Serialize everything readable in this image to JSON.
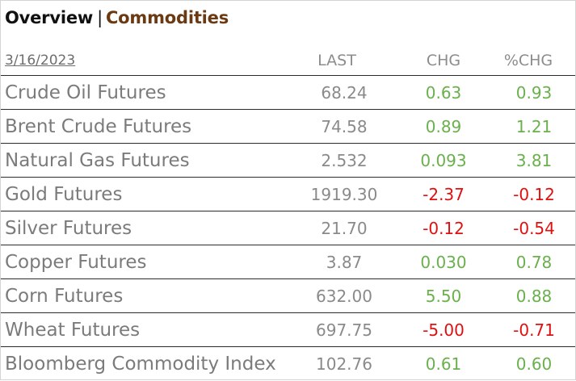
{
  "header": {
    "overview_label": "Overview",
    "separator": "|",
    "commodities_label": "Commodities"
  },
  "table": {
    "date": "3/16/2023",
    "columns": {
      "last": "LAST",
      "chg": "CHG",
      "pct": "%CHG"
    },
    "rows": [
      {
        "name": "Crude Oil Futures",
        "last": "68.24",
        "chg": "0.63",
        "pct": "0.93",
        "direction": "up"
      },
      {
        "name": "Brent Crude Futures",
        "last": "74.58",
        "chg": "0.89",
        "pct": "1.21",
        "direction": "up"
      },
      {
        "name": "Natural Gas Futures",
        "last": "2.532",
        "chg": "0.093",
        "pct": "3.81",
        "direction": "up"
      },
      {
        "name": "Gold Futures",
        "last": "1919.30",
        "chg": "-2.37",
        "pct": "-0.12",
        "direction": "down"
      },
      {
        "name": "Silver Futures",
        "last": "21.70",
        "chg": "-0.12",
        "pct": "-0.54",
        "direction": "down"
      },
      {
        "name": "Copper Futures",
        "last": "3.87",
        "chg": "0.030",
        "pct": "0.78",
        "direction": "up"
      },
      {
        "name": "Corn Futures",
        "last": "632.00",
        "chg": "5.50",
        "pct": "0.88",
        "direction": "up"
      },
      {
        "name": "Wheat Futures",
        "last": "697.75",
        "chg": "-5.00",
        "pct": "-0.71",
        "direction": "down"
      },
      {
        "name": "Bloomberg Commodity Index",
        "last": "102.76",
        "chg": "0.61",
        "pct": "0.60",
        "direction": "up"
      }
    ]
  },
  "colors": {
    "positive": "#6ab04c",
    "negative": "#e01010",
    "accent": "#6b3a13"
  }
}
